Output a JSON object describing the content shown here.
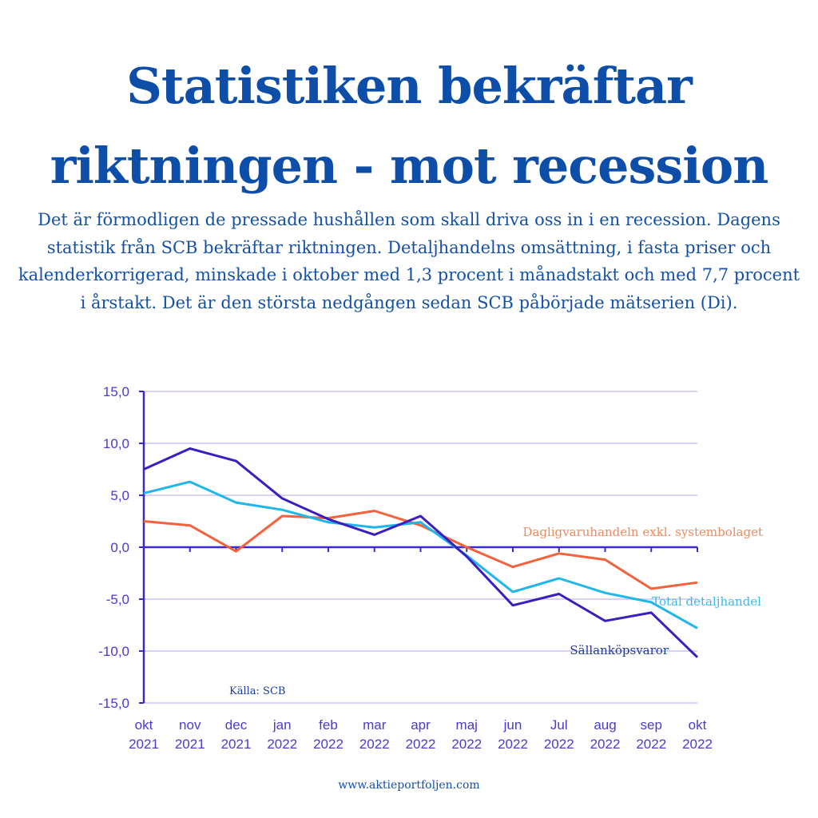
{
  "title": "Statistiken bekräftar riktningen - mot recession",
  "intro": "Det är förmodligen de pressade hushållen som skall driva oss in i en recession. Dagens statistik från SCB bekräftar riktningen. Detaljhandelns omsättning, i fasta priser och kalenderkorrigerad, minskade i oktober med 1,3 procent i månadstakt och med 7,7 procent i årstakt. Det är den största nedgången sedan SCB påbörjade mätserien (Di).",
  "footer": "www.aktieportfoljen.com",
  "chart_data": {
    "type": "line",
    "categories": [
      [
        "okt",
        "2021"
      ],
      [
        "nov",
        "2021"
      ],
      [
        "dec",
        "2021"
      ],
      [
        "jan",
        "2022"
      ],
      [
        "feb",
        "2022"
      ],
      [
        "mar",
        "2022"
      ],
      [
        "apr",
        "2022"
      ],
      [
        "maj",
        "2022"
      ],
      [
        "jun",
        "2022"
      ],
      [
        "Jul",
        "2022"
      ],
      [
        "aug",
        "2022"
      ],
      [
        "sep",
        "2022"
      ],
      [
        "okt",
        "2022"
      ]
    ],
    "yticks": [
      "15,0",
      "10,0",
      "5,0",
      "0,0",
      "-5,0",
      "-10,0",
      "-15,0"
    ],
    "ylim": [
      -15,
      15
    ],
    "grid": true,
    "source": "Källa: SCB",
    "series": [
      {
        "name": "Dagligvaruhandeln exkl. systembolaget",
        "color": "#f4613d",
        "label_color": "#f08a5d",
        "values": [
          2.5,
          2.1,
          -0.4,
          3.0,
          2.8,
          3.5,
          2.1,
          0.0,
          -1.9,
          -0.6,
          -1.2,
          -4.0,
          -3.4
        ]
      },
      {
        "name": "Total detaljhandel",
        "color": "#1fb6ec",
        "label_color": "#3bb8ee",
        "values": [
          5.2,
          6.3,
          4.3,
          3.6,
          2.4,
          1.9,
          2.4,
          -0.8,
          -4.3,
          -3.0,
          -4.4,
          -5.3,
          -7.8
        ]
      },
      {
        "name": "Sällanköpsvaror",
        "color": "#3a1fc0",
        "label_color": "#1c3a9c",
        "values": [
          7.5,
          9.5,
          8.3,
          4.7,
          2.7,
          1.2,
          3.0,
          -0.9,
          -5.6,
          -4.5,
          -7.1,
          -6.3,
          -10.6
        ]
      }
    ]
  }
}
